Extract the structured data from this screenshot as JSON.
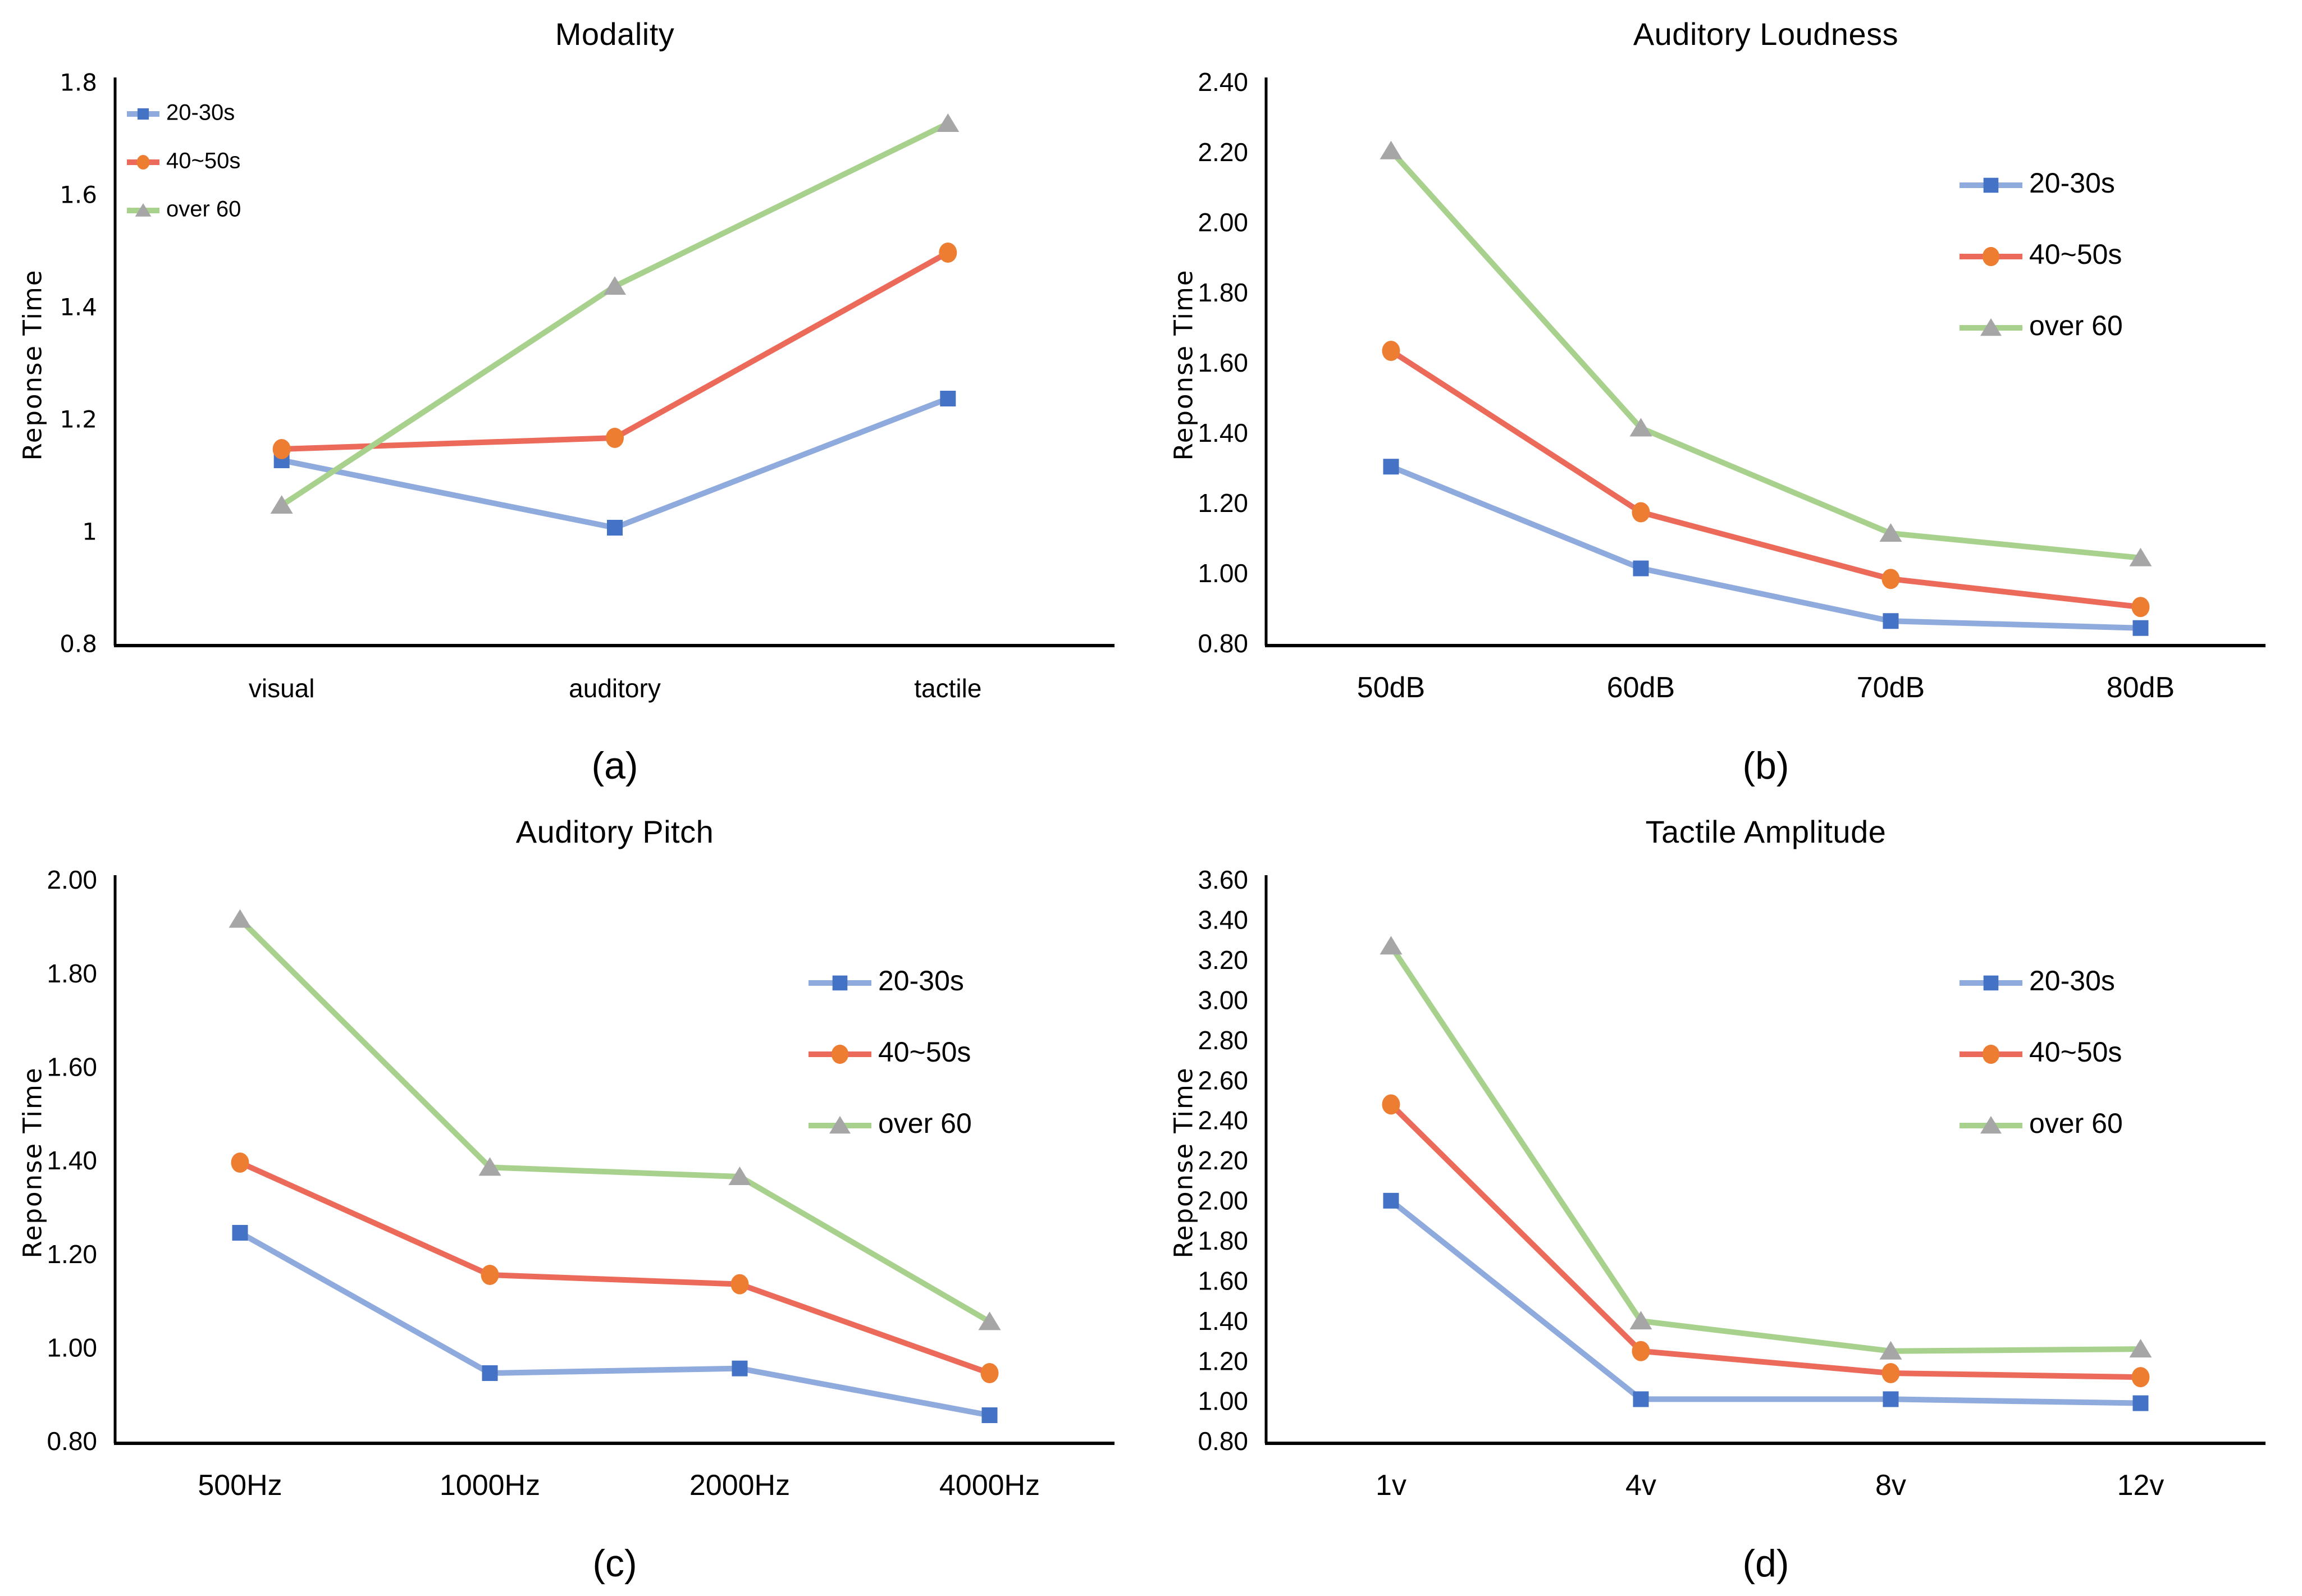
{
  "page": {
    "background": "#FFFFFF",
    "text_color": "#000000",
    "axis_color": "#000000"
  },
  "series_styles": [
    {
      "name": "20-30s",
      "line_color": "#8FAADC",
      "marker_color": "#4472C4",
      "marker": "square"
    },
    {
      "name": "40~50s",
      "line_color": "#EC6A5A",
      "marker_color": "#ED7D31",
      "marker": "circle"
    },
    {
      "name": "over 60",
      "line_color": "#A8D18D",
      "marker_color": "#A6A6A6",
      "marker": "triangle"
    }
  ],
  "chart_data": [
    {
      "type": "line",
      "title": "Modality",
      "caption": "(a)",
      "ylabel": "Reponse Time",
      "xlabel": "",
      "categories": [
        "visual",
        "auditory",
        "tactile"
      ],
      "y_min": 0.8,
      "y_max": 1.8,
      "y_ticks": [
        "0.8",
        "1",
        "1.2",
        "1.4",
        "1.6",
        "1.8"
      ],
      "grid": false,
      "legend_position": "top-left",
      "variant": "compact",
      "series": [
        {
          "name": "20-30s",
          "values": [
            1.13,
            1.01,
            1.24
          ]
        },
        {
          "name": "40~50s",
          "values": [
            1.15,
            1.17,
            1.5
          ]
        },
        {
          "name": "over 60",
          "values": [
            1.05,
            1.44,
            1.73
          ]
        }
      ]
    },
    {
      "type": "line",
      "title": "Auditory Loudness",
      "caption": "(b)",
      "ylabel": "Reponse Time",
      "xlabel": "",
      "categories": [
        "50dB",
        "60dB",
        "70dB",
        "80dB"
      ],
      "y_min": 0.8,
      "y_max": 2.4,
      "y_ticks": [
        "0.80",
        "1.00",
        "1.20",
        "1.40",
        "1.60",
        "1.80",
        "2.00",
        "2.20",
        "2.40"
      ],
      "grid": false,
      "legend_position": "top-right",
      "variant": "normal",
      "series": [
        {
          "name": "20-30s",
          "values": [
            1.31,
            1.02,
            0.87,
            0.85
          ]
        },
        {
          "name": "40~50s",
          "values": [
            1.64,
            1.18,
            0.99,
            0.91
          ]
        },
        {
          "name": "over 60",
          "values": [
            2.21,
            1.42,
            1.12,
            1.05
          ]
        }
      ]
    },
    {
      "type": "line",
      "title": "Auditory Pitch",
      "caption": "(c)",
      "ylabel": "Reponse Time",
      "xlabel": "",
      "categories": [
        "500Hz",
        "1000Hz",
        "2000Hz",
        "4000Hz"
      ],
      "y_min": 0.8,
      "y_max": 2.0,
      "y_ticks": [
        "0.80",
        "1.00",
        "1.20",
        "1.40",
        "1.60",
        "1.80",
        "2.00"
      ],
      "grid": false,
      "legend_position": "top-right",
      "variant": "normal",
      "series": [
        {
          "name": "20-30s",
          "values": [
            1.25,
            0.95,
            0.96,
            0.86
          ]
        },
        {
          "name": "40~50s",
          "values": [
            1.4,
            1.16,
            1.14,
            0.95
          ]
        },
        {
          "name": "over 60",
          "values": [
            1.92,
            1.39,
            1.37,
            1.06
          ]
        }
      ]
    },
    {
      "type": "line",
      "title": "Tactile Amplitude",
      "caption": "(d)",
      "ylabel": "Reponse Time",
      "xlabel": "",
      "categories": [
        "1v",
        "4v",
        "8v",
        "12v"
      ],
      "y_min": 0.8,
      "y_max": 3.6,
      "y_ticks": [
        "0.80",
        "1.00",
        "1.20",
        "1.40",
        "1.60",
        "1.80",
        "2.00",
        "2.20",
        "2.40",
        "2.60",
        "2.80",
        "3.00",
        "3.20",
        "3.40",
        "3.60"
      ],
      "grid": false,
      "legend_position": "top-right",
      "variant": "normal",
      "series": [
        {
          "name": "20-30s",
          "values": [
            2.01,
            1.02,
            1.02,
            1.0
          ]
        },
        {
          "name": "40~50s",
          "values": [
            2.49,
            1.26,
            1.15,
            1.13
          ]
        },
        {
          "name": "over 60",
          "values": [
            3.28,
            1.41,
            1.26,
            1.27
          ]
        }
      ]
    }
  ]
}
